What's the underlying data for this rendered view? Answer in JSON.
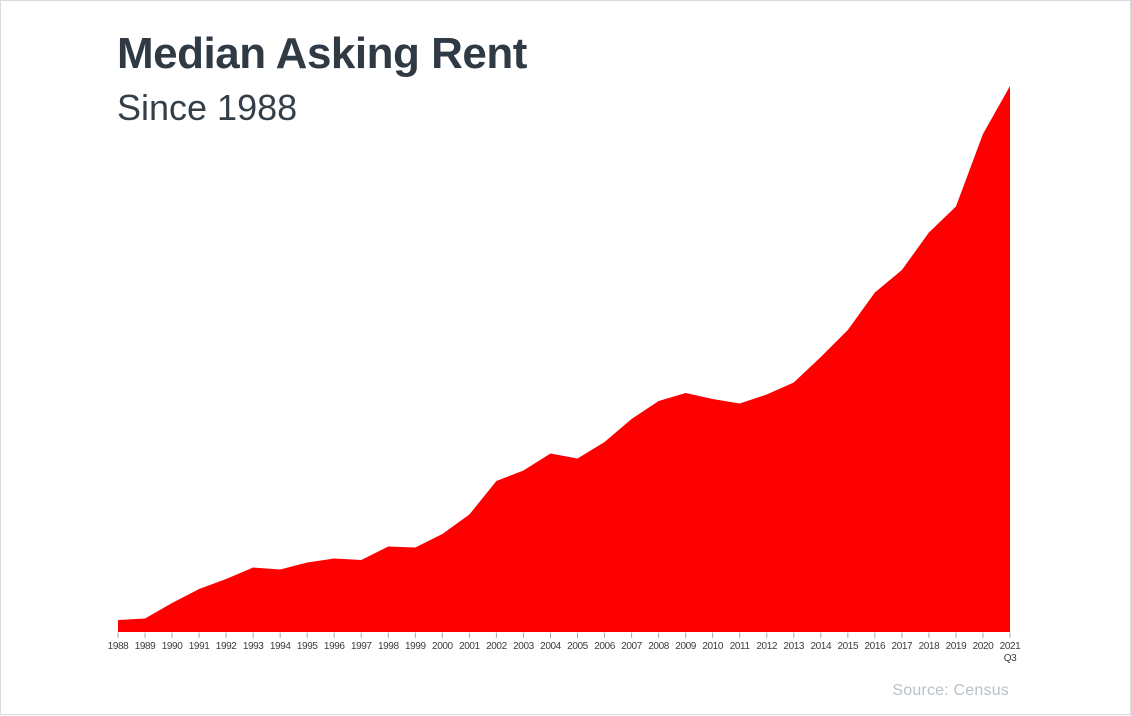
{
  "page": {
    "title": "Median Asking Rent",
    "subtitle": "Since 1988",
    "source": "Source: Census"
  },
  "colors": {
    "area": "#ff0000",
    "title_text": "#2f3a44",
    "subtitle_text": "#343f49",
    "tick_label_text": "#3c3c3c",
    "tick_mark": "#ababab",
    "source_text": "#b7c1ca",
    "page_border": "#d9dcde",
    "background": "#ffffff"
  },
  "chart_data": {
    "type": "area",
    "title": "Median Asking Rent",
    "subtitle": "Since 1988",
    "source": "Source: Census",
    "xlabel": "",
    "ylabel": "",
    "y_axis_note": "no y-axis ticks or gridlines shown; values are relative area heights in screen pixels above the baseline",
    "grid": false,
    "legend": "none",
    "series_name": "Median Asking Rent",
    "series_color": "#ff0000",
    "categories": [
      "1988",
      "1989",
      "1990",
      "1991",
      "1992",
      "1993",
      "1994",
      "1995",
      "1996",
      "1997",
      "1998",
      "1999",
      "2000",
      "2001",
      "2002",
      "2003",
      "2004",
      "2005",
      "2006",
      "2007",
      "2008",
      "2009",
      "2010",
      "2011",
      "2012",
      "2013",
      "2014",
      "2015",
      "2016",
      "2017",
      "2018",
      "2019",
      "2020",
      "2021"
    ],
    "last_tick_sublabel": "Q3",
    "values": [
      12,
      13.5,
      29,
      43,
      53,
      64.5,
      62.5,
      69.5,
      73.5,
      72,
      85.5,
      84.5,
      98,
      117.5,
      151,
      161.5,
      178.5,
      173.5,
      190,
      213,
      231,
      239,
      233,
      228.5,
      237.5,
      249.5,
      275,
      302,
      339.5,
      362,
      399.5,
      425.5,
      498,
      546
    ],
    "ylim": [
      0,
      560
    ],
    "shape_notes": "monotone rise with small dips at 1994, 1997, 1999, 2005, plateau/dip 2009-2011, steep climb 2019-2021 ending in sharp peak at 2021 Q3"
  }
}
